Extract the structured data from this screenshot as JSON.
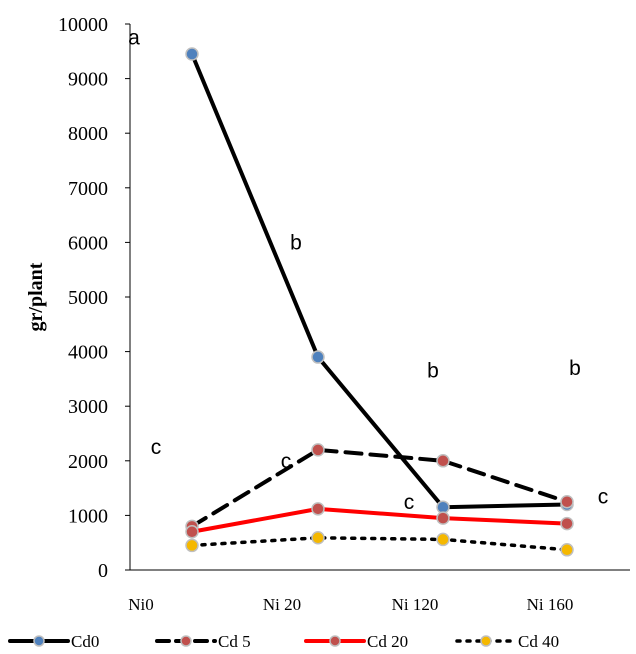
{
  "chart_data": {
    "type": "line",
    "title": "",
    "xlabel": "",
    "ylabel": "gr/plant",
    "ylim": [
      0,
      10000
    ],
    "yticks": [
      0,
      1000,
      2000,
      3000,
      4000,
      5000,
      6000,
      7000,
      8000,
      9000,
      10000
    ],
    "categories": [
      "Ni0",
      "Ni 20",
      "Ni 120",
      "Ni 160"
    ],
    "grid": false,
    "legend_position": "bottom",
    "series": [
      {
        "name": "Cd0",
        "values": [
          9450,
          3900,
          1150,
          1200
        ],
        "color": "#000000",
        "line_style": "solid",
        "marker_fill": "#4f81bd"
      },
      {
        "name": "Cd 5",
        "values": [
          800,
          2200,
          2000,
          1250
        ],
        "color": "#000000",
        "line_style": "dashed",
        "marker_fill": "#c0504d"
      },
      {
        "name": "Cd 20",
        "values": [
          700,
          1120,
          950,
          850
        ],
        "color": "#ff0000",
        "line_style": "solid",
        "marker_fill": "#c0504d"
      },
      {
        "name": "Cd 40",
        "values": [
          450,
          590,
          560,
          370
        ],
        "color": "#000000",
        "line_style": "dotted",
        "marker_fill": "#f5b800"
      }
    ],
    "annotations": [
      {
        "text": "a",
        "x": "Ni0",
        "y": 9750
      },
      {
        "text": "b",
        "x": "Ni 20",
        "y": 6000
      },
      {
        "text": "b",
        "x": "Ni 120",
        "y": 3650
      },
      {
        "text": "b",
        "x": "Ni 160",
        "y": 3700
      },
      {
        "text": "c",
        "x": "Ni0",
        "y": 2250
      },
      {
        "text": "c",
        "x": "Ni 20",
        "y": 2000
      },
      {
        "text": "c",
        "x": "Ni 120",
        "y": 1250
      },
      {
        "text": "c",
        "x": "Ni 160",
        "y": 1350
      }
    ]
  }
}
